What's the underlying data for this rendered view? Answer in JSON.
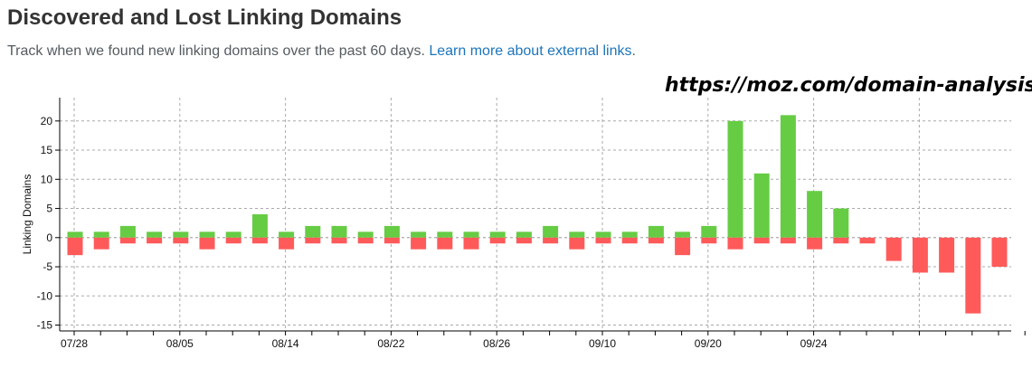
{
  "header": {
    "title": "Discovered and Lost Linking Domains",
    "subtitle": "Track when we found new linking domains over the past 60 days.",
    "link_text": "Learn more about external links",
    "period": "."
  },
  "watermark": "https://moz.com/domain-analysis",
  "colors": {
    "gained": "#66cc44",
    "lost": "#ff5a5a",
    "grid": "#aaaaaa"
  },
  "chart_data": {
    "type": "bar",
    "ylabel": "Linking Domains",
    "ylim": [
      -16,
      24
    ],
    "yticks": [
      -15,
      -10,
      -5,
      0,
      5,
      10,
      15,
      20
    ],
    "x_ticks": [
      "07/28",
      "08/05",
      "08/14",
      "08/22",
      "08/26",
      "09/10",
      "09/20",
      "09/24"
    ],
    "grid": true,
    "series": [
      {
        "values": [
          1,
          1,
          2,
          1,
          1,
          1,
          1,
          4,
          1,
          2,
          2,
          1,
          2,
          1,
          1,
          1,
          1,
          1,
          2,
          1,
          1,
          1,
          2,
          1,
          2,
          20,
          11,
          21,
          8,
          5,
          0,
          0,
          0,
          0,
          0,
          0
        ]
      },
      {
        "values": [
          -3,
          -2,
          -1,
          -1,
          -1,
          -2,
          -1,
          -1,
          -2,
          -1,
          -1,
          -1,
          -1,
          -2,
          -2,
          -2,
          -1,
          -1,
          -1,
          -2,
          -1,
          -1,
          -1,
          -3,
          -1,
          -2,
          -1,
          -1,
          -2,
          -1,
          -1,
          -4,
          -6,
          -6,
          -13,
          -5
        ]
      }
    ]
  }
}
